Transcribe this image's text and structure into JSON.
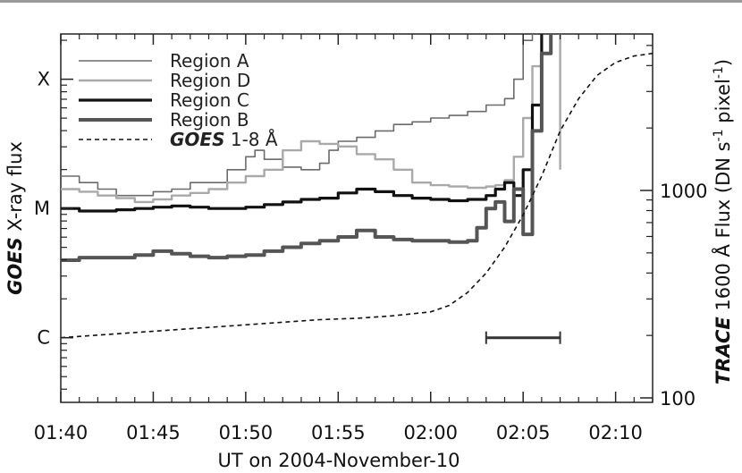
{
  "chart_data": {
    "type": "line",
    "xlabel": "UT on 2004-November-10",
    "x_ticks": [
      "01:40",
      "01:45",
      "01:50",
      "01:55",
      "02:00",
      "02:05",
      "02:10"
    ],
    "x_tick_minutes": [
      0,
      5,
      10,
      15,
      20,
      25,
      30
    ],
    "xlim_minutes_after_0140": [
      0,
      32
    ],
    "ylabel_left": {
      "italic": "GOES",
      "rest": " X-ray flux"
    },
    "left_ticks": [
      "C",
      "M",
      "X"
    ],
    "left_tick_log10": [
      -6,
      -5,
      -4
    ],
    "ylim_left_log10": [
      -6.5,
      -3.65
    ],
    "ylabel_right": {
      "italic": "TRACE",
      "rest": " 1600 Å Flux (DN s",
      "sup1": "-1",
      "mid": " pixel",
      "sup2": "-1",
      "end": ")"
    },
    "right_ticks": [
      "100",
      "1000"
    ],
    "right_tick_values": [
      100,
      1000
    ],
    "grid": false,
    "legend_position": "top-left",
    "bar_annotation": {
      "x_start_minute": 23,
      "x_end_minute": 27,
      "y_log10": -6
    },
    "series": [
      {
        "name": "Region A",
        "color": "#6b6b6b",
        "width": 1.6,
        "x": [
          0,
          1,
          2,
          3,
          4,
          5,
          6,
          7,
          8,
          9,
          10,
          10.5,
          11,
          12,
          13,
          14,
          14.5,
          15,
          16,
          17,
          18,
          19,
          20,
          21,
          22,
          23,
          24,
          24.5,
          25,
          25.5,
          26,
          27
        ],
        "y": [
          -4.75,
          -4.8,
          -4.85,
          -4.9,
          -4.9,
          -4.87,
          -4.85,
          -4.8,
          -4.8,
          -4.7,
          -4.6,
          -4.55,
          -4.62,
          -4.68,
          -4.7,
          -4.65,
          -4.55,
          -4.48,
          -4.45,
          -4.4,
          -4.35,
          -4.33,
          -4.3,
          -4.28,
          -4.25,
          -4.2,
          -4.15,
          -4.0,
          -3.7,
          -3.4,
          -3.3,
          -3.2
        ]
      },
      {
        "name": "Region D",
        "color": "#a9a9a9",
        "width": 2.4,
        "x": [
          0,
          1,
          2,
          3,
          4,
          5,
          6,
          7,
          8,
          9,
          10,
          11,
          12,
          13,
          14,
          15,
          16,
          17,
          18,
          19,
          20,
          21,
          22,
          23,
          23.5,
          24,
          24.5,
          25,
          25.5,
          26,
          26.5,
          27
        ],
        "y": [
          -4.85,
          -4.87,
          -4.9,
          -4.92,
          -4.95,
          -4.93,
          -4.9,
          -4.88,
          -4.85,
          -4.8,
          -4.75,
          -4.7,
          -4.55,
          -4.48,
          -4.5,
          -4.52,
          -4.58,
          -4.62,
          -4.7,
          -4.8,
          -4.82,
          -4.83,
          -4.84,
          -4.83,
          -4.82,
          -4.78,
          -4.6,
          -4.3,
          -3.9,
          -3.5,
          -3.3,
          -4.7
        ]
      },
      {
        "name": "Region C",
        "color": "#111111",
        "width": 3.2,
        "x": [
          0,
          1,
          2,
          3,
          4,
          5,
          6,
          7,
          8,
          9,
          10,
          11,
          12,
          13,
          14,
          15,
          16,
          17,
          18,
          19,
          20,
          21,
          22,
          23,
          23.5,
          24,
          24.5,
          25,
          25.5,
          26
        ],
        "y": [
          -5.0,
          -5.02,
          -5.02,
          -5.01,
          -5.0,
          -4.99,
          -4.98,
          -4.99,
          -5.0,
          -5.0,
          -4.99,
          -4.97,
          -4.95,
          -4.93,
          -4.92,
          -4.88,
          -4.85,
          -4.87,
          -4.9,
          -4.92,
          -4.93,
          -4.94,
          -4.93,
          -4.9,
          -4.85,
          -4.8,
          -4.9,
          -4.7,
          -4.2,
          -3.6
        ]
      },
      {
        "name": "Region B",
        "color": "#555555",
        "width": 4.0,
        "x": [
          0,
          1,
          2,
          3,
          4,
          5,
          6,
          7,
          8,
          9,
          10,
          11,
          12,
          13,
          14,
          15,
          16,
          17,
          18,
          19,
          20,
          21,
          22,
          22.5,
          23,
          23.5,
          24,
          24.5,
          25,
          25.5,
          26,
          26.5
        ],
        "y": [
          -5.4,
          -5.38,
          -5.38,
          -5.38,
          -5.36,
          -5.33,
          -5.35,
          -5.37,
          -5.38,
          -5.37,
          -5.36,
          -5.33,
          -5.3,
          -5.27,
          -5.25,
          -5.22,
          -5.17,
          -5.22,
          -5.24,
          -5.25,
          -5.25,
          -5.26,
          -5.25,
          -5.15,
          -5.0,
          -4.95,
          -5.1,
          -4.85,
          -5.2,
          -4.4,
          -3.8,
          -3.2
        ]
      },
      {
        "name": "GOES 1-8 Å",
        "legend_italic": "GOES",
        "legend_rest": " 1-8 Å",
        "color": "#111111",
        "dashed": true,
        "width": 1.6,
        "x": [
          0,
          2,
          4,
          6,
          8,
          10,
          12,
          14,
          16,
          18,
          20,
          21,
          22,
          23,
          24,
          25,
          26,
          27,
          28,
          29,
          30,
          31,
          32
        ],
        "y": [
          -6.0,
          -5.98,
          -5.96,
          -5.94,
          -5.92,
          -5.9,
          -5.88,
          -5.86,
          -5.85,
          -5.83,
          -5.8,
          -5.75,
          -5.65,
          -5.5,
          -5.3,
          -5.05,
          -4.75,
          -4.4,
          -4.15,
          -3.97,
          -3.87,
          -3.82,
          -3.8
        ]
      }
    ]
  }
}
